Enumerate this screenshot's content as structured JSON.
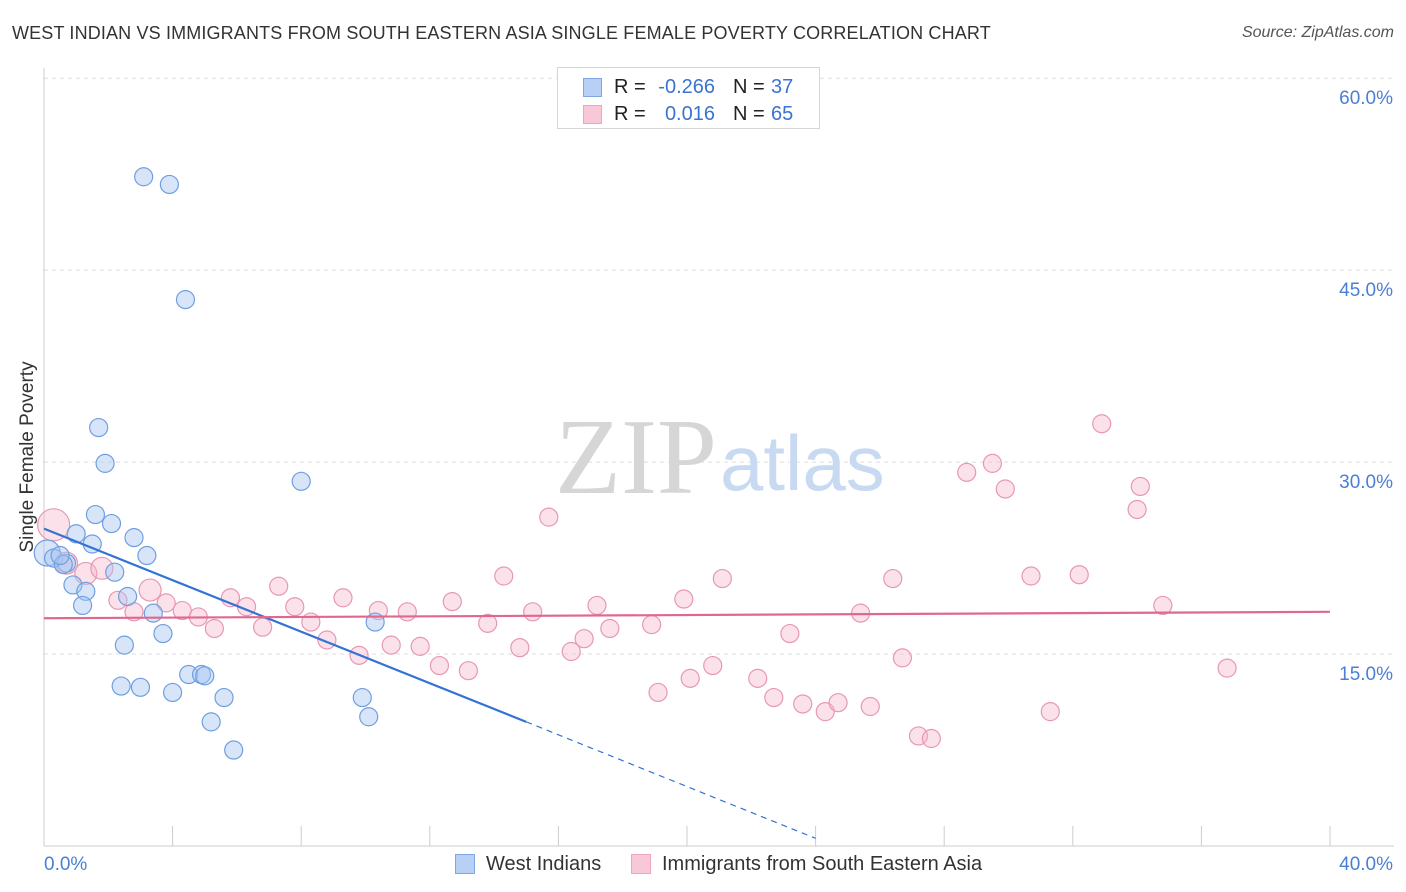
{
  "header": {
    "source": "Source: ZipAtlas.com"
  },
  "watermark": {
    "zip": "ZIP",
    "atlas": "atlas"
  },
  "legend_box": {
    "r_label": "R =",
    "n_label": "N ="
  },
  "chart_data": {
    "type": "scatter",
    "title": "WEST INDIAN VS IMMIGRANTS FROM SOUTH EASTERN ASIA SINGLE FEMALE POVERTY CORRELATION CHART",
    "ylabel": "Single Female Poverty",
    "xlim": [
      0,
      40
    ],
    "ylim": [
      0,
      60.8
    ],
    "grid": true,
    "legend_position": "bottom",
    "xticks": [
      0,
      4,
      8,
      12,
      16,
      20,
      24,
      28,
      32,
      36,
      40
    ],
    "x_tick_labels": [
      "0.0%",
      "40.0%"
    ],
    "yticks": [
      {
        "value": 60,
        "label": "60.0%"
      },
      {
        "value": 45,
        "label": "45.0%"
      },
      {
        "value": 30,
        "label": "30.0%"
      },
      {
        "value": 15,
        "label": "15.0%"
      }
    ],
    "series": [
      {
        "name": "West Indians",
        "r": "-0.266",
        "n": "37",
        "fill": "#a9c6f2",
        "stroke": "#6f9fe0",
        "line": "#3373d4",
        "points": [
          [
            3.1,
            52.3
          ],
          [
            3.9,
            51.7
          ],
          [
            4.4,
            42.7
          ],
          [
            1.7,
            32.7
          ],
          [
            1.9,
            29.9
          ],
          [
            8.0,
            28.5
          ],
          [
            1.6,
            25.9
          ],
          [
            2.1,
            25.2
          ],
          [
            1.0,
            24.4
          ],
          [
            2.8,
            24.1
          ],
          [
            1.5,
            23.6
          ],
          [
            0.1,
            22.9
          ],
          [
            0.3,
            22.5
          ],
          [
            3.2,
            22.7
          ],
          [
            0.7,
            22.1
          ],
          [
            0.6,
            22.0
          ],
          [
            2.2,
            21.4
          ],
          [
            0.9,
            20.4
          ],
          [
            1.3,
            19.9
          ],
          [
            2.6,
            19.5
          ],
          [
            1.2,
            18.8
          ],
          [
            3.4,
            18.2
          ],
          [
            10.3,
            17.5
          ],
          [
            3.7,
            16.6
          ],
          [
            2.5,
            15.7
          ],
          [
            4.5,
            13.4
          ],
          [
            4.9,
            13.4
          ],
          [
            5.0,
            13.3
          ],
          [
            2.4,
            12.5
          ],
          [
            3.0,
            12.4
          ],
          [
            4.0,
            12.0
          ],
          [
            5.6,
            11.6
          ],
          [
            9.9,
            11.6
          ],
          [
            5.2,
            9.7
          ],
          [
            10.1,
            10.1
          ],
          [
            5.9,
            7.5
          ],
          [
            0.5,
            22.7
          ]
        ]
      },
      {
        "name": "Immigrants from South Eastern Asia",
        "r": "0.016",
        "n": "65",
        "fill": "#f4b3c8",
        "stroke": "#e897b3",
        "line": "#e0688f",
        "points": [
          [
            0.3,
            25.1
          ],
          [
            0.7,
            22.1
          ],
          [
            1.3,
            21.3
          ],
          [
            1.8,
            21.7
          ],
          [
            2.3,
            19.2
          ],
          [
            2.8,
            18.3
          ],
          [
            3.3,
            20.0
          ],
          [
            3.8,
            19.0
          ],
          [
            4.3,
            18.4
          ],
          [
            4.8,
            17.9
          ],
          [
            5.3,
            17.0
          ],
          [
            5.8,
            19.4
          ],
          [
            6.3,
            18.7
          ],
          [
            6.8,
            17.1
          ],
          [
            7.3,
            20.3
          ],
          [
            7.8,
            18.7
          ],
          [
            8.3,
            17.5
          ],
          [
            8.8,
            16.1
          ],
          [
            9.3,
            19.4
          ],
          [
            9.8,
            14.9
          ],
          [
            10.4,
            18.4
          ],
          [
            10.8,
            15.7
          ],
          [
            11.3,
            18.3
          ],
          [
            11.7,
            15.6
          ],
          [
            12.3,
            14.1
          ],
          [
            12.7,
            19.1
          ],
          [
            13.2,
            13.7
          ],
          [
            13.8,
            17.4
          ],
          [
            14.3,
            21.1
          ],
          [
            14.8,
            15.5
          ],
          [
            15.2,
            18.3
          ],
          [
            15.7,
            25.7
          ],
          [
            16.4,
            15.2
          ],
          [
            16.8,
            16.2
          ],
          [
            17.2,
            18.8
          ],
          [
            17.6,
            17.0
          ],
          [
            18.9,
            17.3
          ],
          [
            19.1,
            12.0
          ],
          [
            19.9,
            19.3
          ],
          [
            20.1,
            13.1
          ],
          [
            20.8,
            14.1
          ],
          [
            21.1,
            20.9
          ],
          [
            22.2,
            13.1
          ],
          [
            22.7,
            11.6
          ],
          [
            23.2,
            16.6
          ],
          [
            23.6,
            11.1
          ],
          [
            24.3,
            10.5
          ],
          [
            24.7,
            11.2
          ],
          [
            25.4,
            18.2
          ],
          [
            25.7,
            10.9
          ],
          [
            26.4,
            20.9
          ],
          [
            26.7,
            14.7
          ],
          [
            27.2,
            8.6
          ],
          [
            27.6,
            8.4
          ],
          [
            28.7,
            29.2
          ],
          [
            29.5,
            29.9
          ],
          [
            29.9,
            27.9
          ],
          [
            30.7,
            21.1
          ],
          [
            31.3,
            10.5
          ],
          [
            32.2,
            21.2
          ],
          [
            32.9,
            33.0
          ],
          [
            34.1,
            28.1
          ],
          [
            34.0,
            26.3
          ],
          [
            34.8,
            18.8
          ],
          [
            36.8,
            13.9
          ]
        ]
      }
    ],
    "trend_lines": [
      {
        "series_index": 0,
        "solid": [
          [
            0,
            24.8
          ],
          [
            15.0,
            9.7
          ]
        ],
        "dashed": [
          [
            15.0,
            9.7
          ],
          [
            24.0,
            0.6
          ]
        ]
      },
      {
        "series_index": 1,
        "solid": [
          [
            0,
            17.8
          ],
          [
            40,
            18.3
          ]
        ]
      }
    ]
  }
}
